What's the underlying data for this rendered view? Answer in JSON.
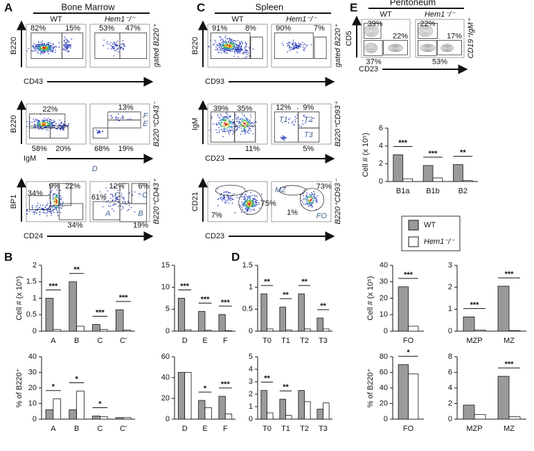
{
  "panel_letters": [
    "A",
    "B",
    "C",
    "D",
    "E"
  ],
  "flow": [
    {
      "title": "Bone Marrow",
      "columns": [
        "WT",
        "Hem1⁻/⁻"
      ],
      "rows": [
        {
          "y_axis": "B220",
          "x_axis": "CD43",
          "gate": "gated B220⁺",
          "labels": [
            "82%",
            "15%",
            "53%",
            "47%"
          ]
        },
        {
          "y_axis": "B220",
          "x_axis": "IgM",
          "gate": "B220⁺CD43⁻",
          "labels": [
            "22%",
            "58%",
            "20%",
            "13%",
            "F",
            "E",
            "68%",
            "19%",
            "D"
          ]
        },
        {
          "y_axis": "BP1",
          "x_axis": "CD24",
          "gate": "B220⁺CD43⁺",
          "labels": [
            "9%",
            "22%",
            "34%",
            "34%",
            "12%",
            "6%",
            "C",
            "C",
            "61%",
            "A",
            "B",
            "19%"
          ]
        }
      ]
    },
    {
      "title": "Spleen",
      "columns": [
        "WT",
        "Hem1⁻/⁻"
      ],
      "rows": [
        {
          "y_axis": "B220",
          "x_axis": "CD93",
          "gate": "gated B220⁺",
          "labels": [
            "91%",
            "8%",
            "90%",
            "7%"
          ]
        },
        {
          "y_axis": "IgM",
          "x_axis": "CD23",
          "gate": "B220⁺CD93⁺",
          "labels": [
            "39%",
            "35%",
            "11%",
            "12%",
            "9%",
            "T1",
            "T2",
            "T3",
            "5%"
          ]
        },
        {
          "y_axis": "CD21",
          "x_axis": "CD23",
          "gate": "B220⁺CD93⁻",
          "labels": [
            "7%",
            "75%",
            "MZ",
            "73%",
            "1%",
            "FO"
          ]
        }
      ]
    },
    {
      "title": "Peritoneum",
      "columns": [
        "WT",
        "Hem1⁻/⁻"
      ],
      "rows": [
        {
          "y_axis": "CD5",
          "x_axis": "CD23",
          "gate": "CD19⁺IgM⁺",
          "labels": [
            "39%",
            "22%",
            "37%",
            "22%",
            "17%",
            "53%"
          ]
        }
      ]
    }
  ],
  "legend": {
    "items": [
      {
        "name": "WT",
        "color": "#9a9a9a"
      },
      {
        "name": "Hem1⁻/⁻",
        "color": "#ffffff"
      }
    ]
  },
  "chart_data": [
    {
      "type": "bar",
      "y_label": "Cell # (x 10⁵)",
      "categories": [
        "A",
        "B",
        "C",
        "C'"
      ],
      "ylim": [
        0,
        2
      ],
      "yticks": [
        0,
        0.5,
        1,
        1.5,
        2
      ],
      "series": [
        {
          "color": "#9a9a9a",
          "values": [
            1.0,
            1.5,
            0.2,
            0.65
          ]
        },
        {
          "color": "#ffffff",
          "values": [
            0.05,
            0.15,
            0.05,
            0.03
          ]
        }
      ],
      "significance": [
        "***",
        "**",
        "***",
        "***"
      ]
    },
    {
      "type": "bar",
      "categories": [
        "D",
        "E",
        "F"
      ],
      "ylim": [
        0,
        15
      ],
      "yticks": [
        0,
        5,
        10,
        15
      ],
      "series": [
        {
          "color": "#9a9a9a",
          "values": [
            7.5,
            4.5,
            3.8
          ]
        },
        {
          "color": "#ffffff",
          "values": [
            0.3,
            0.2,
            0.1
          ]
        }
      ],
      "significance": [
        "***",
        "***",
        "***"
      ]
    },
    {
      "type": "bar",
      "y_label": "% of B220⁺",
      "categories": [
        "A",
        "B",
        "C",
        "C'"
      ],
      "ylim": [
        0,
        40
      ],
      "yticks": [
        0,
        10,
        20,
        30,
        40
      ],
      "series": [
        {
          "color": "#9a9a9a",
          "values": [
            6,
            6,
            2,
            1
          ]
        },
        {
          "color": "#ffffff",
          "values": [
            13,
            18,
            1.5,
            1
          ]
        }
      ],
      "significance": [
        "*",
        "*",
        "*",
        null
      ]
    },
    {
      "type": "bar",
      "categories": [
        "D",
        "E",
        "F"
      ],
      "ylim": [
        0,
        60
      ],
      "yticks": [
        0,
        20,
        40,
        60
      ],
      "series": [
        {
          "color": "#9a9a9a",
          "values": [
            45,
            18,
            22
          ]
        },
        {
          "color": "#ffffff",
          "values": [
            45,
            11,
            5
          ]
        }
      ],
      "significance": [
        null,
        "*",
        "***"
      ]
    },
    {
      "type": "bar",
      "categories": [
        "T0",
        "T1",
        "T2",
        "T3"
      ],
      "ylim": [
        0,
        1.5
      ],
      "yticks": [
        0,
        0.5,
        1,
        1.5
      ],
      "series": [
        {
          "color": "#9a9a9a",
          "values": [
            0.85,
            0.55,
            0.85,
            0.3
          ]
        },
        {
          "color": "#ffffff",
          "values": [
            0.05,
            0.03,
            0.05,
            0.05
          ]
        }
      ],
      "significance": [
        "**",
        "**",
        "**",
        "**"
      ]
    },
    {
      "type": "bar",
      "y_label": "Cell # (x 10⁵)",
      "categories": [
        "FO"
      ],
      "ylim": [
        0,
        40
      ],
      "yticks": [
        0,
        10,
        20,
        30,
        40
      ],
      "series": [
        {
          "color": "#9a9a9a",
          "values": [
            27
          ]
        },
        {
          "color": "#ffffff",
          "values": [
            3
          ]
        }
      ],
      "significance": [
        "***"
      ]
    },
    {
      "type": "bar",
      "categories": [
        "MZP",
        "MZ"
      ],
      "ylim": [
        0,
        3
      ],
      "yticks": [
        0,
        1,
        2,
        3
      ],
      "series": [
        {
          "color": "#9a9a9a",
          "values": [
            0.65,
            2.05
          ]
        },
        {
          "color": "#ffffff",
          "values": [
            0.05,
            0.03
          ]
        }
      ],
      "significance": [
        "***",
        "***"
      ]
    },
    {
      "type": "bar",
      "categories": [
        "T0",
        "T1",
        "T2",
        "T3"
      ],
      "ylim": [
        0,
        5
      ],
      "yticks": [
        0,
        1,
        2,
        3,
        4,
        5
      ],
      "series": [
        {
          "color": "#9a9a9a",
          "values": [
            2.3,
            1.6,
            2.3,
            0.8
          ]
        },
        {
          "color": "#ffffff",
          "values": [
            0.5,
            0.3,
            1.4,
            1.3
          ]
        }
      ],
      "significance": [
        "**",
        "**",
        null,
        null
      ]
    },
    {
      "type": "bar",
      "y_label": "% of B220⁺",
      "categories": [
        "FO"
      ],
      "ylim": [
        0,
        80
      ],
      "yticks": [
        0,
        20,
        40,
        60,
        80
      ],
      "series": [
        {
          "color": "#9a9a9a",
          "values": [
            70
          ]
        },
        {
          "color": "#ffffff",
          "values": [
            58
          ]
        }
      ],
      "significance": [
        "*"
      ]
    },
    {
      "type": "bar",
      "categories": [
        "MZP",
        "MZ"
      ],
      "ylim": [
        0,
        8
      ],
      "yticks": [
        0,
        2,
        4,
        6,
        8
      ],
      "series": [
        {
          "color": "#9a9a9a",
          "values": [
            1.8,
            5.5
          ]
        },
        {
          "color": "#ffffff",
          "values": [
            0.6,
            0.3
          ]
        }
      ],
      "significance": [
        null,
        "***"
      ]
    },
    {
      "type": "bar",
      "y_label": "Cell # (x 10⁵)",
      "categories": [
        "B1a",
        "B1b",
        "B2"
      ],
      "ylim": [
        0,
        6
      ],
      "yticks": [
        0,
        2,
        4,
        6
      ],
      "series": [
        {
          "color": "#9a9a9a",
          "values": [
            3,
            1.8,
            1.9
          ]
        },
        {
          "color": "#ffffff",
          "values": [
            0.3,
            0.4,
            0.1
          ]
        }
      ],
      "significance": [
        "***",
        "***",
        "**"
      ]
    }
  ]
}
